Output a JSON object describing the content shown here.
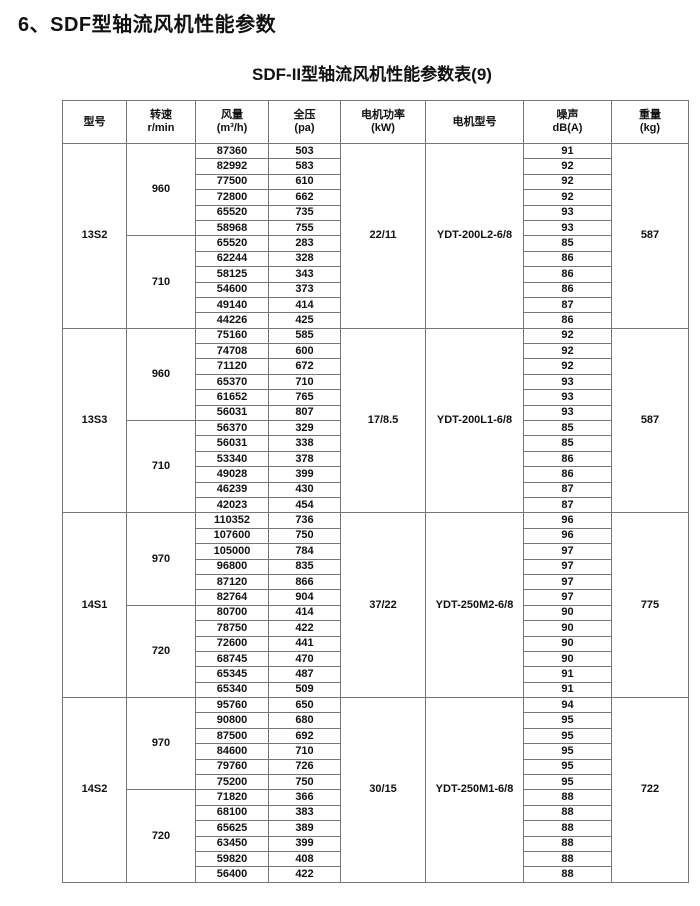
{
  "heading": "6、SDF型轴流风机性能参数",
  "table_title": "SDF-II型轴流风机性能参数表(9)",
  "headers": [
    {
      "l1": "型号",
      "l2": ""
    },
    {
      "l1": "转速",
      "l2": "r/min"
    },
    {
      "l1": "风量",
      "l2": "(m³/h)"
    },
    {
      "l1": "全压",
      "l2": "(pa)"
    },
    {
      "l1": "电机功率",
      "l2": "(kW)"
    },
    {
      "l1": "电机型号",
      "l2": ""
    },
    {
      "l1": "噪声",
      "l2": "dB(A)"
    },
    {
      "l1": "重量",
      "l2": "(kg)"
    }
  ],
  "models": [
    {
      "model": "13S2",
      "power": "22/11",
      "motor": "YDT-200L2-6/8",
      "weight": "587",
      "speeds": [
        {
          "rpm": "960",
          "rows": [
            [
              "87360",
              "503",
              "91"
            ],
            [
              "82992",
              "583",
              "92"
            ],
            [
              "77500",
              "610",
              "92"
            ],
            [
              "72800",
              "662",
              "92"
            ],
            [
              "65520",
              "735",
              "93"
            ],
            [
              "58968",
              "755",
              "93"
            ]
          ]
        },
        {
          "rpm": "710",
          "rows": [
            [
              "65520",
              "283",
              "85"
            ],
            [
              "62244",
              "328",
              "86"
            ],
            [
              "58125",
              "343",
              "86"
            ],
            [
              "54600",
              "373",
              "86"
            ],
            [
              "49140",
              "414",
              "87"
            ],
            [
              "44226",
              "425",
              "86"
            ]
          ]
        }
      ]
    },
    {
      "model": "13S3",
      "power": "17/8.5",
      "motor": "YDT-200L1-6/8",
      "weight": "587",
      "speeds": [
        {
          "rpm": "960",
          "rows": [
            [
              "75160",
              "585",
              "92"
            ],
            [
              "74708",
              "600",
              "92"
            ],
            [
              "71120",
              "672",
              "92"
            ],
            [
              "65370",
              "710",
              "93"
            ],
            [
              "61652",
              "765",
              "93"
            ],
            [
              "56031",
              "807",
              "93"
            ]
          ]
        },
        {
          "rpm": "710",
          "rows": [
            [
              "56370",
              "329",
              "85"
            ],
            [
              "56031",
              "338",
              "85"
            ],
            [
              "53340",
              "378",
              "86"
            ],
            [
              "49028",
              "399",
              "86"
            ],
            [
              "46239",
              "430",
              "87"
            ],
            [
              "42023",
              "454",
              "87"
            ]
          ]
        }
      ]
    },
    {
      "model": "14S1",
      "power": "37/22",
      "motor": "YDT-250M2-6/8",
      "weight": "775",
      "speeds": [
        {
          "rpm": "970",
          "rows": [
            [
              "110352",
              "736",
              "96"
            ],
            [
              "107600",
              "750",
              "96"
            ],
            [
              "105000",
              "784",
              "97"
            ],
            [
              "96800",
              "835",
              "97"
            ],
            [
              "87120",
              "866",
              "97"
            ],
            [
              "82764",
              "904",
              "97"
            ]
          ]
        },
        {
          "rpm": "720",
          "rows": [
            [
              "80700",
              "414",
              "90"
            ],
            [
              "78750",
              "422",
              "90"
            ],
            [
              "72600",
              "441",
              "90"
            ],
            [
              "68745",
              "470",
              "90"
            ],
            [
              "65345",
              "487",
              "91"
            ],
            [
              "65340",
              "509",
              "91"
            ]
          ]
        }
      ]
    },
    {
      "model": "14S2",
      "power": "30/15",
      "motor": "YDT-250M1-6/8",
      "weight": "722",
      "speeds": [
        {
          "rpm": "970",
          "rows": [
            [
              "95760",
              "650",
              "94"
            ],
            [
              "90800",
              "680",
              "95"
            ],
            [
              "87500",
              "692",
              "95"
            ],
            [
              "84600",
              "710",
              "95"
            ],
            [
              "79760",
              "726",
              "95"
            ],
            [
              "75200",
              "750",
              "95"
            ]
          ]
        },
        {
          "rpm": "720",
          "rows": [
            [
              "71820",
              "366",
              "88"
            ],
            [
              "68100",
              "383",
              "88"
            ],
            [
              "65625",
              "389",
              "88"
            ],
            [
              "63450",
              "399",
              "88"
            ],
            [
              "59820",
              "408",
              "88"
            ],
            [
              "56400",
              "422",
              "88"
            ]
          ]
        }
      ]
    }
  ]
}
